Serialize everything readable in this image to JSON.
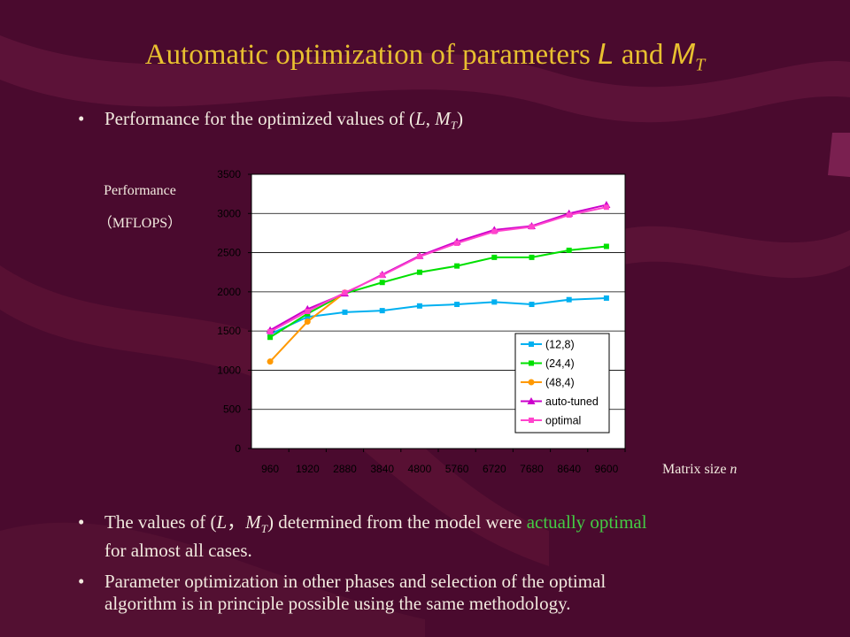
{
  "slide": {
    "title_prefix": "Automatic  optimization  of parameters ",
    "title_L": "L",
    "title_and": " and ",
    "title_M": "M",
    "title_sub": "T",
    "bullet1_pre": "Performance for the optimized values of (",
    "bullet1_L": "L",
    "bullet1_mid": ", ",
    "bullet1_M": "M",
    "bullet1_sub": "T",
    "bullet1_post": ")",
    "bullet2_pre": "The values of (",
    "bullet2_L": "L",
    "bullet2_mid": "，",
    "bullet2_M": "M",
    "bullet2_sub": "T",
    "bullet2_post": ") determined from the model were ",
    "bullet2_highlight": "actually optimal",
    "bullet2_line2": "for almost all cases.",
    "bullet3_line1": "Parameter optimization in other phases and selection of the optimal",
    "bullet3_line2": "algorithm is in principle possible using the same methodology.",
    "bullet_symbol": "•",
    "ylabel_line1": "Performance",
    "ylabel_line2": "（MFLOPS）",
    "xlabel_text": "Matrix size ",
    "xlabel_var": "n"
  },
  "colors": {
    "title": "#e8c030",
    "highlight": "#44cc44",
    "background": "#4a0a2e"
  },
  "chart_data": {
    "type": "line",
    "xlabel": "Matrix size n",
    "ylabel": "Performance (MFLOPS)",
    "categories": [
      "960",
      "1920",
      "2880",
      "3840",
      "4800",
      "5760",
      "6720",
      "7680",
      "8640",
      "9600"
    ],
    "ylim": [
      0,
      3500
    ],
    "yticks": [
      0,
      500,
      1000,
      1500,
      2000,
      2500,
      3000,
      3500
    ],
    "grid": true,
    "legend_position": "bottom-right",
    "series": [
      {
        "name": "(12,8)",
        "color": "#00b0f0",
        "marker": "square",
        "values": [
          1460,
          1680,
          1740,
          1760,
          1820,
          1840,
          1870,
          1840,
          1900,
          1920
        ]
      },
      {
        "name": "(24,4)",
        "color": "#00e000",
        "marker": "square",
        "values": [
          1420,
          1720,
          1980,
          2120,
          2250,
          2330,
          2440,
          2440,
          2530,
          2580
        ]
      },
      {
        "name": "(48,4)",
        "color": "#ff9900",
        "marker": "circle",
        "values": [
          1110,
          1620,
          1990,
          null,
          null,
          null,
          null,
          null,
          null,
          null
        ]
      },
      {
        "name": "auto-tuned",
        "color": "#cc00cc",
        "marker": "triangle",
        "values": [
          1510,
          1780,
          1980,
          2220,
          2460,
          2640,
          2790,
          2840,
          3000,
          3110
        ]
      },
      {
        "name": "optimal",
        "color": "#ff44cc",
        "marker": "square",
        "values": [
          1490,
          1750,
          1990,
          2210,
          2450,
          2620,
          2770,
          2830,
          2980,
          3080
        ]
      }
    ]
  }
}
